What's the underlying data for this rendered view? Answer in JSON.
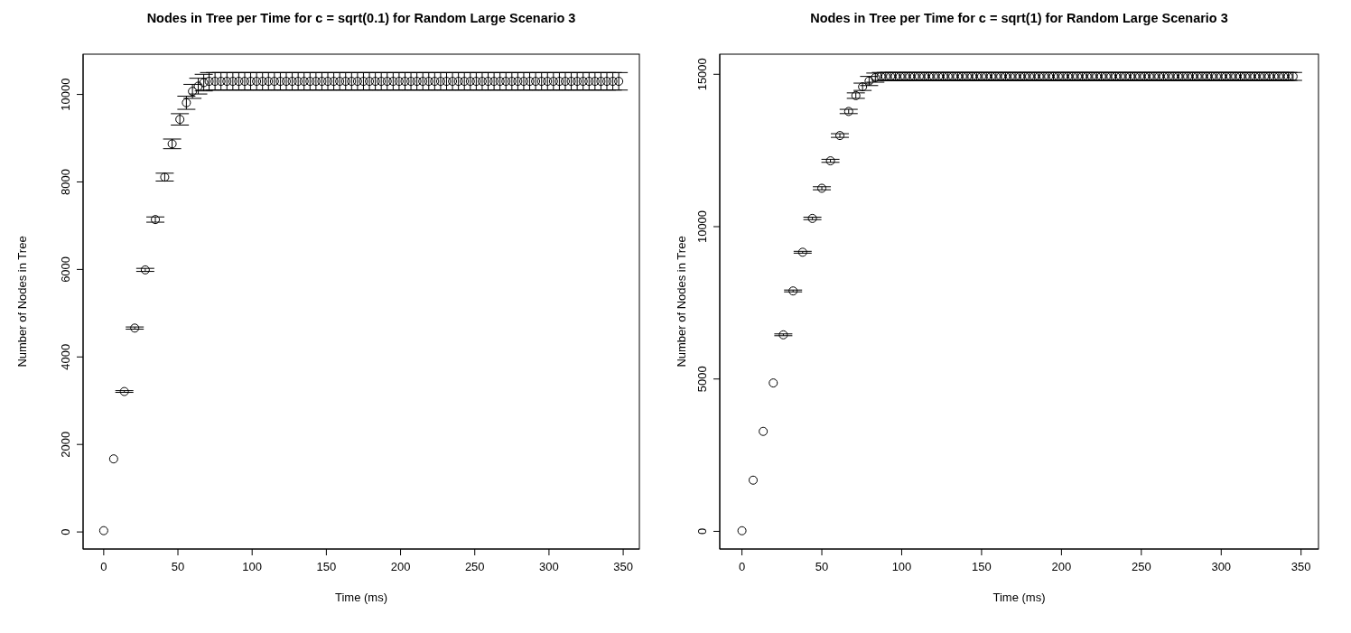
{
  "chart_data": [
    {
      "type": "scatter",
      "title": "Nodes in Tree per Time for c = sqrt(0.1) for Random Large Scenario 3",
      "xlabel": "Time (ms)",
      "ylabel": "Number of Nodes in Tree",
      "marker": "circle",
      "grid": false,
      "color": "#000000",
      "xlim": [
        -13.9,
        360.9
      ],
      "xticks": [
        0,
        50,
        100,
        150,
        200,
        250,
        300,
        350
      ],
      "ylim": [
        -390,
        10920
      ],
      "yticks": [
        0,
        2000,
        4000,
        6000,
        8000,
        10000
      ],
      "x": [
        0,
        6.7,
        13.9,
        20.9,
        28,
        34.8,
        41.1,
        46.1,
        51.3,
        55.7,
        59.8,
        63.7,
        67.4,
        71,
        75,
        79,
        83,
        87,
        91,
        95,
        99,
        103,
        107,
        111,
        115,
        119,
        123,
        127,
        131,
        135,
        139,
        143,
        147,
        151,
        155,
        159,
        163,
        167,
        171,
        175,
        179,
        183,
        187,
        191,
        195,
        199,
        203,
        207,
        211,
        215,
        219,
        223,
        227,
        231,
        235,
        239,
        243,
        247,
        251,
        255,
        259,
        263,
        267,
        271,
        275,
        279,
        283,
        287,
        291,
        295,
        299,
        303,
        307,
        311,
        315,
        319,
        323,
        327,
        331,
        335,
        339,
        343,
        347
      ],
      "values": [
        30,
        1670,
        3210,
        4660,
        5990,
        7140,
        8110,
        8870,
        9430,
        9810,
        10070,
        10190,
        10270,
        10300,
        10300,
        10300,
        10300,
        10300,
        10300,
        10300,
        10300,
        10300,
        10300,
        10300,
        10300,
        10300,
        10300,
        10300,
        10300,
        10300,
        10300,
        10300,
        10300,
        10300,
        10300,
        10300,
        10300,
        10300,
        10300,
        10300,
        10300,
        10300,
        10300,
        10300,
        10300,
        10300,
        10300,
        10300,
        10300,
        10300,
        10300,
        10300,
        10300,
        10300,
        10300,
        10300,
        10300,
        10300,
        10300,
        10300,
        10300,
        10300,
        10300,
        10300,
        10300,
        10300,
        10300,
        10300,
        10300,
        10300,
        10300,
        10300,
        10300,
        10300,
        10300,
        10300,
        10300,
        10300,
        10300,
        10300,
        10300,
        10300,
        10300
      ],
      "errors": [
        null,
        null,
        20,
        25,
        35,
        60,
        90,
        110,
        130,
        150,
        160,
        180,
        190,
        200,
        200,
        200,
        200,
        200,
        200,
        200,
        200,
        200,
        200,
        200,
        200,
        200,
        200,
        200,
        200,
        200,
        200,
        200,
        200,
        200,
        200,
        200,
        200,
        200,
        200,
        200,
        200,
        200,
        200,
        200,
        200,
        200,
        200,
        200,
        200,
        200,
        200,
        200,
        200,
        200,
        200,
        200,
        200,
        200,
        200,
        200,
        200,
        200,
        200,
        200,
        200,
        200,
        200,
        200,
        200,
        200,
        200,
        200,
        200,
        200,
        200,
        200,
        200,
        200,
        200,
        200,
        200,
        200,
        200
      ]
    },
    {
      "type": "scatter",
      "title": "Nodes in Tree per Time for c = sqrt(1) for Random Large Scenario 3",
      "xlabel": "Time (ms)",
      "ylabel": "Number of Nodes in Tree",
      "marker": "circle",
      "grid": false,
      "color": "#000000",
      "xlim": [
        -13.9,
        360.9
      ],
      "xticks": [
        0,
        50,
        100,
        150,
        200,
        250,
        300,
        350
      ],
      "ylim": [
        -580,
        15660
      ],
      "yticks": [
        0,
        5000,
        10000,
        15000
      ],
      "x": [
        0,
        7,
        13.3,
        19.6,
        25.9,
        32,
        38,
        44.1,
        50,
        55.4,
        61.3,
        66.8,
        71.3,
        75.5,
        79.6,
        83.5,
        87,
        90,
        93,
        96,
        99,
        102,
        105,
        108,
        111,
        114,
        117,
        120,
        123,
        126,
        129,
        132,
        135,
        138,
        141,
        144,
        147,
        150,
        153,
        156,
        159,
        162,
        165,
        168,
        171,
        174,
        177,
        180,
        183,
        186,
        189,
        192,
        195,
        198,
        201,
        204,
        207,
        210,
        213,
        216,
        219,
        222,
        225,
        228,
        231,
        234,
        237,
        240,
        243,
        246,
        249,
        252,
        255,
        258,
        261,
        264,
        267,
        270,
        273,
        276,
        279,
        282,
        285,
        288,
        291,
        294,
        297,
        300,
        303,
        306,
        309,
        312,
        315,
        318,
        321,
        324,
        327,
        330,
        333,
        336,
        339,
        342,
        345
      ],
      "values": [
        20,
        1680,
        3280,
        4870,
        6450,
        7890,
        9160,
        10270,
        11260,
        12160,
        12990,
        13780,
        14300,
        14590,
        14780,
        14890,
        14930,
        14930,
        14930,
        14930,
        14930,
        14930,
        14930,
        14930,
        14930,
        14930,
        14930,
        14930,
        14930,
        14930,
        14930,
        14930,
        14930,
        14930,
        14930,
        14930,
        14930,
        14930,
        14930,
        14930,
        14930,
        14930,
        14930,
        14930,
        14930,
        14930,
        14930,
        14930,
        14930,
        14930,
        14930,
        14930,
        14930,
        14930,
        14930,
        14930,
        14930,
        14930,
        14930,
        14930,
        14930,
        14930,
        14930,
        14930,
        14930,
        14930,
        14930,
        14930,
        14930,
        14930,
        14930,
        14930,
        14930,
        14930,
        14930,
        14930,
        14930,
        14930,
        14930,
        14930,
        14930,
        14930,
        14930,
        14930,
        14930,
        14930,
        14930,
        14930,
        14930,
        14930,
        14930,
        14930,
        14930,
        14930,
        14930,
        14930,
        14930,
        14930,
        14930,
        14930,
        14930,
        14930,
        14930
      ],
      "errors": [
        null,
        null,
        null,
        null,
        30,
        30,
        30,
        40,
        50,
        50,
        60,
        70,
        90,
        120,
        150,
        150,
        130,
        130,
        130,
        130,
        130,
        130,
        130,
        130,
        130,
        130,
        130,
        130,
        130,
        130,
        130,
        130,
        130,
        130,
        130,
        130,
        130,
        130,
        130,
        130,
        130,
        130,
        130,
        130,
        130,
        130,
        130,
        130,
        130,
        130,
        130,
        130,
        130,
        130,
        130,
        130,
        130,
        130,
        130,
        130,
        130,
        130,
        130,
        130,
        130,
        130,
        130,
        130,
        130,
        130,
        130,
        130,
        130,
        130,
        130,
        130,
        130,
        130,
        130,
        130,
        130,
        130,
        130,
        130,
        130,
        130,
        130,
        130,
        130,
        130,
        130,
        130,
        130,
        130,
        130,
        130,
        130,
        130,
        130,
        130,
        130,
        130,
        130
      ]
    }
  ]
}
